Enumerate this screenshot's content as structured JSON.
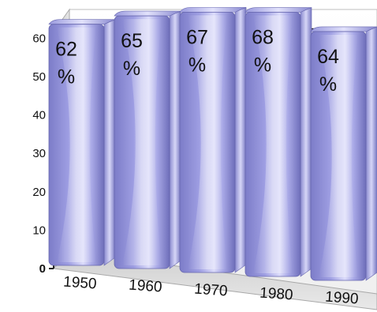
{
  "chart_data": {
    "type": "bar",
    "title": "",
    "xlabel": "",
    "ylabel": "",
    "categories": [
      "1950",
      "1960",
      "1970",
      "1980",
      "1990"
    ],
    "values": [
      62,
      65,
      67,
      68,
      64
    ],
    "data_labels": [
      [
        "62",
        "%"
      ],
      [
        "65",
        "%"
      ],
      [
        "67",
        "%"
      ],
      [
        "68",
        "%"
      ],
      [
        "64",
        "%"
      ]
    ],
    "ylim": [
      0,
      70
    ],
    "yticks": [
      0,
      10,
      20,
      30,
      40,
      50,
      60
    ],
    "grid": true,
    "legend": "none",
    "bar_color": "#8f8fd8",
    "style": "3d-cylinder"
  }
}
